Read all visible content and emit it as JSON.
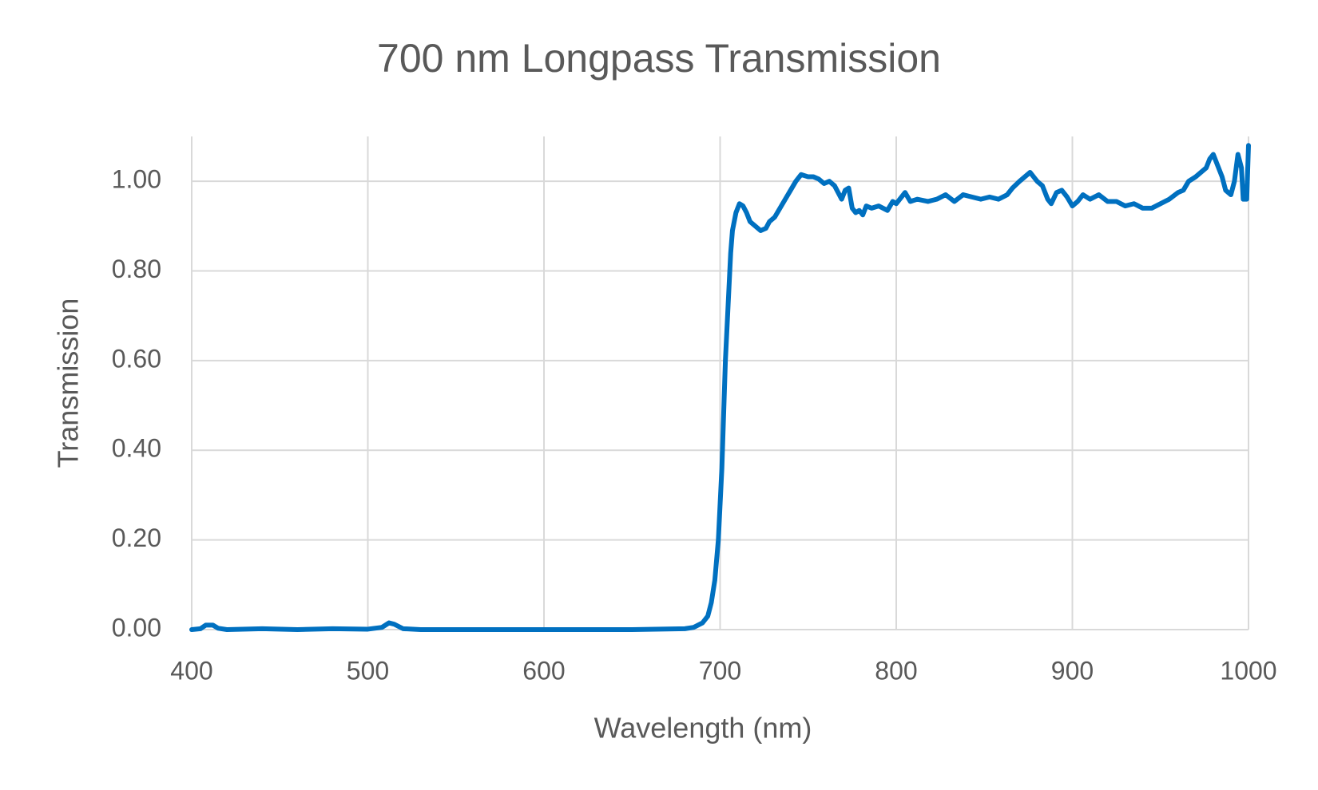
{
  "chart_data": {
    "type": "line",
    "title": "700 nm Longpass Transmission",
    "x_label": "Wavelength (nm)",
    "y_label": "Transmission",
    "x": [
      400,
      405,
      408,
      412,
      415,
      420,
      440,
      460,
      480,
      500,
      508,
      512,
      515,
      520,
      530,
      600,
      650,
      680,
      685,
      690,
      693,
      695,
      697,
      699,
      700,
      701,
      702,
      703,
      704,
      705,
      706,
      707,
      709,
      711,
      713,
      715,
      717,
      720,
      723,
      726,
      728,
      731,
      734,
      737,
      740,
      743,
      746,
      750,
      753,
      756,
      759,
      762,
      765,
      767,
      769,
      771,
      773,
      775,
      777,
      779,
      781,
      783,
      786,
      790,
      795,
      798,
      800,
      805,
      808,
      812,
      818,
      823,
      828,
      833,
      838,
      843,
      848,
      853,
      858,
      863,
      866,
      870,
      873,
      876,
      880,
      883,
      886,
      888,
      891,
      894,
      897,
      900,
      903,
      906,
      910,
      915,
      920,
      925,
      930,
      935,
      940,
      945,
      950,
      955,
      960,
      963,
      966,
      970,
      973,
      976,
      978,
      980,
      982,
      985,
      987,
      990,
      992,
      994,
      996,
      997,
      999,
      1000
    ],
    "series": [
      {
        "name": "Transmission",
        "color": "#0070c0",
        "values": [
          0,
          0.002,
          0.01,
          0.01,
          0.003,
          0,
          0.002,
          0,
          0.002,
          0.001,
          0.005,
          0.015,
          0.012,
          0.002,
          0,
          0,
          0,
          0.002,
          0.005,
          0.015,
          0.03,
          0.06,
          0.11,
          0.2,
          0.28,
          0.36,
          0.48,
          0.6,
          0.68,
          0.76,
          0.84,
          0.89,
          0.93,
          0.95,
          0.945,
          0.93,
          0.91,
          0.9,
          0.89,
          0.895,
          0.91,
          0.92,
          0.94,
          0.96,
          0.98,
          1.0,
          1.015,
          1.01,
          1.01,
          1.005,
          0.995,
          1.0,
          0.99,
          0.975,
          0.96,
          0.98,
          0.985,
          0.94,
          0.93,
          0.935,
          0.925,
          0.945,
          0.94,
          0.945,
          0.935,
          0.955,
          0.95,
          0.975,
          0.955,
          0.96,
          0.955,
          0.96,
          0.97,
          0.955,
          0.97,
          0.965,
          0.96,
          0.965,
          0.96,
          0.97,
          0.985,
          1.0,
          1.01,
          1.02,
          1.0,
          0.99,
          0.96,
          0.95,
          0.975,
          0.98,
          0.965,
          0.945,
          0.955,
          0.97,
          0.96,
          0.97,
          0.955,
          0.955,
          0.945,
          0.95,
          0.94,
          0.94,
          0.95,
          0.96,
          0.975,
          0.98,
          1.0,
          1.01,
          1.02,
          1.03,
          1.05,
          1.06,
          1.04,
          1.01,
          0.98,
          0.97,
          1.0,
          1.06,
          1.03,
          0.96,
          0.96,
          1.08
        ]
      }
    ],
    "xlim": [
      400,
      1000
    ],
    "xticks": [
      400,
      500,
      600,
      700,
      800,
      900,
      1000
    ],
    "ylim": [
      0,
      1.1
    ],
    "yticks": [
      {
        "value": 0,
        "label": "0.00"
      },
      {
        "value": 0.2,
        "label": "0.20"
      },
      {
        "value": 0.4,
        "label": "0.40"
      },
      {
        "value": 0.6,
        "label": "0.60"
      },
      {
        "value": 0.8,
        "label": "0.80"
      },
      {
        "value": 1,
        "label": "1.00"
      }
    ],
    "grid": true
  }
}
